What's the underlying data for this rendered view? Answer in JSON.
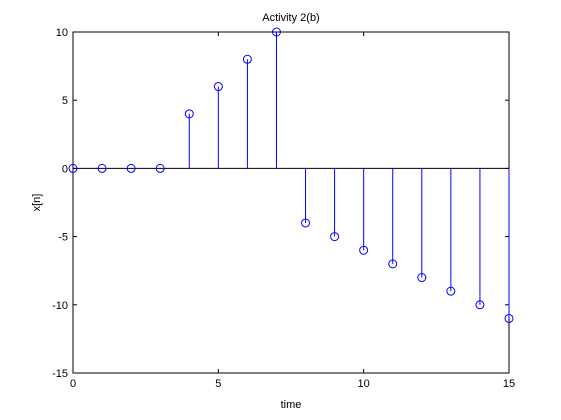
{
  "chart_data": {
    "type": "stem",
    "title": "Activity 2(b)",
    "xlabel": "time",
    "ylabel": "x[n]",
    "xlim": [
      0,
      15
    ],
    "ylim": [
      -15,
      10
    ],
    "x_ticks": [
      0,
      5,
      10,
      15
    ],
    "y_ticks": [
      -15,
      -10,
      -5,
      0,
      5,
      10
    ],
    "grid": false,
    "baseline": 0,
    "series": [
      {
        "x": [
          0,
          1,
          2,
          3,
          4,
          5,
          6,
          7,
          8,
          9,
          10,
          11,
          12,
          13,
          14,
          15
        ],
        "y": [
          0,
          0,
          0,
          0,
          4,
          6,
          8,
          10,
          -4,
          -5,
          -6,
          -7,
          -8,
          -9,
          -10,
          -11
        ],
        "color": "#0000ff",
        "marker": "circle"
      }
    ]
  }
}
